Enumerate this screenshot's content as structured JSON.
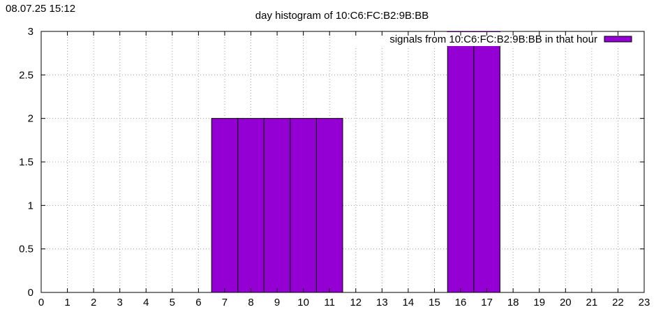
{
  "timestamp": "08.07.25 15:12",
  "chart_data": {
    "type": "bar",
    "title": "day histogram of 10:C6:FC:B2:9B:BB",
    "xlabel": "",
    "ylabel": "",
    "legend": {
      "label": "signals from 10:C6:FC:B2:9B:BB in that hour",
      "position": "top-right"
    },
    "categories": [
      "0",
      "1",
      "2",
      "3",
      "4",
      "5",
      "6",
      "7",
      "8",
      "9",
      "10",
      "11",
      "12",
      "13",
      "14",
      "15",
      "16",
      "17",
      "18",
      "19",
      "20",
      "21",
      "22",
      "23"
    ],
    "values": [
      0,
      0,
      0,
      0,
      0,
      0,
      0,
      2,
      2,
      2,
      2,
      2,
      0,
      0,
      0,
      0,
      3,
      3,
      0,
      0,
      0,
      0,
      0,
      0
    ],
    "xlim": [
      0,
      23
    ],
    "ylim": [
      0,
      3
    ],
    "yticks": [
      "0",
      "0.5",
      "1",
      "1.5",
      "2",
      "2.5",
      "3"
    ],
    "grid": true,
    "bar_color": "#9400d3"
  }
}
